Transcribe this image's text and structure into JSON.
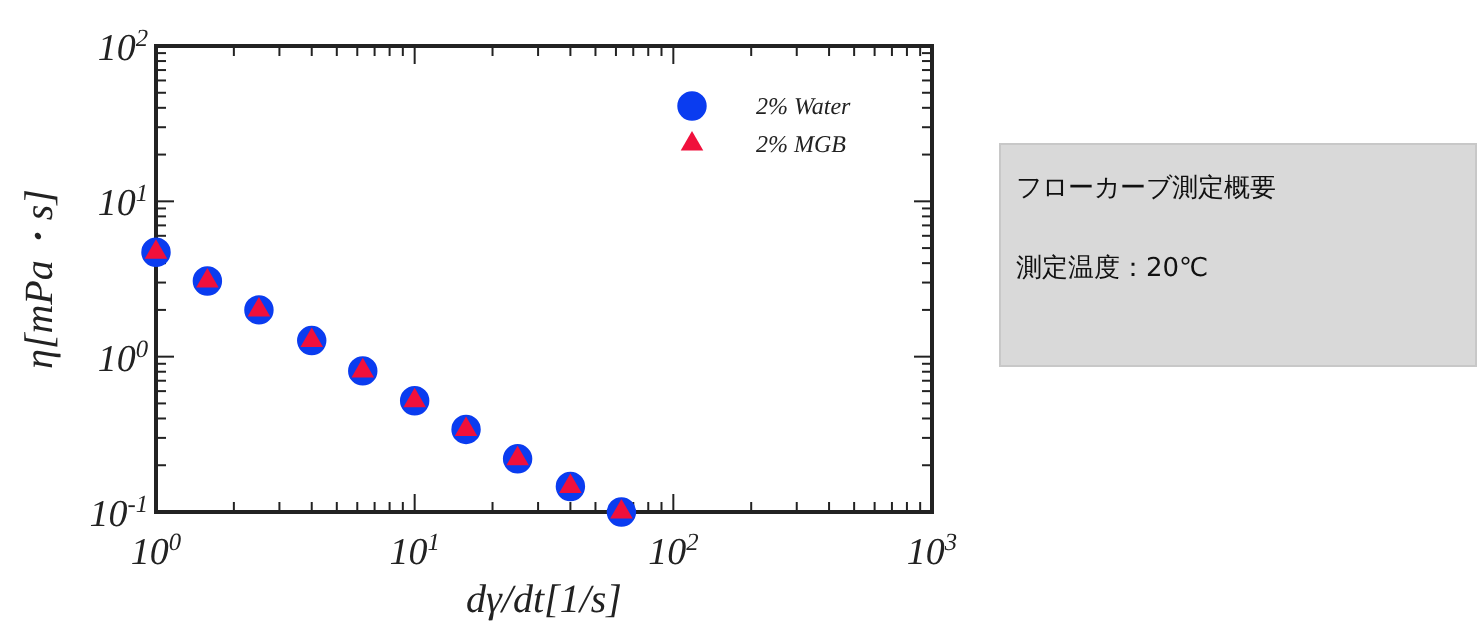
{
  "chart_data": [
    {
      "type": "scatter",
      "xlabel": "dγ/dt[1/s]",
      "ylabel": "η[mPa・s]",
      "log": "xy",
      "xlim": [
        1,
        1000
      ],
      "ylim": [
        0.1,
        100
      ],
      "xticks": [
        {
          "value": 1,
          "label": "10$^{0}$"
        },
        {
          "value": 2,
          "label": null
        },
        {
          "value": 3,
          "label": null
        },
        {
          "value": 4,
          "label": null
        },
        {
          "value": 5,
          "label": null
        },
        {
          "value": 6,
          "label": null
        },
        {
          "value": 7,
          "label": null
        },
        {
          "value": 8,
          "label": null
        },
        {
          "value": 9,
          "label": null
        },
        {
          "value": 10,
          "label": "10$^{1}$"
        },
        {
          "value": 20,
          "label": null
        },
        {
          "value": 30,
          "label": null
        },
        {
          "value": 40,
          "label": null
        },
        {
          "value": 50,
          "label": null
        },
        {
          "value": 60,
          "label": null
        },
        {
          "value": 70,
          "label": null
        },
        {
          "value": 80,
          "label": null
        },
        {
          "value": 90,
          "label": null
        },
        {
          "value": 100,
          "label": "10$^{2}$"
        },
        {
          "value": 200,
          "label": null
        },
        {
          "value": 300,
          "label": null
        },
        {
          "value": 400,
          "label": null
        },
        {
          "value": 500,
          "label": null
        },
        {
          "value": 600,
          "label": null
        },
        {
          "value": 700,
          "label": null
        },
        {
          "value": 800,
          "label": null
        },
        {
          "value": 900,
          "label": null
        },
        {
          "value": 1000,
          "label": "10$^{3}$"
        }
      ],
      "yticks": [
        {
          "value": 0.1,
          "label": "10$^{-1}$"
        },
        {
          "value": 0.2,
          "label": null
        },
        {
          "value": 0.3,
          "label": null
        },
        {
          "value": 0.4,
          "label": null
        },
        {
          "value": 0.5,
          "label": null
        },
        {
          "value": 0.6,
          "label": null
        },
        {
          "value": 0.7,
          "label": null
        },
        {
          "value": 0.8,
          "label": null
        },
        {
          "value": 0.9,
          "label": null
        },
        {
          "value": 1,
          "label": "10$^{0}$"
        },
        {
          "value": 2,
          "label": null
        },
        {
          "value": 3,
          "label": null
        },
        {
          "value": 4,
          "label": null
        },
        {
          "value": 5,
          "label": null
        },
        {
          "value": 6,
          "label": null
        },
        {
          "value": 7,
          "label": null
        },
        {
          "value": 8,
          "label": null
        },
        {
          "value": 9,
          "label": null
        },
        {
          "value": 10,
          "label": "10$^{1}$"
        },
        {
          "value": 20,
          "label": null
        },
        {
          "value": 30,
          "label": null
        },
        {
          "value": 40,
          "label": null
        },
        {
          "value": 50,
          "label": null
        },
        {
          "value": 60,
          "label": null
        },
        {
          "value": 70,
          "label": null
        },
        {
          "value": 80,
          "label": null
        },
        {
          "value": 90,
          "label": null
        },
        {
          "value": 100,
          "label": "10$^{2}$"
        }
      ],
      "x": [
        1,
        1.58,
        2.5,
        4,
        6.3,
        10,
        15.8,
        25,
        40,
        63
      ],
      "legend": "top right",
      "series": [
        {
          "name": "2% Water",
          "color": "#0a3cf0",
          "marker": "circle",
          "values": [
            4.7,
            3.07,
            2.0,
            1.27,
            0.81,
            0.52,
            0.34,
            0.22,
            0.146,
            0.1
          ]
        },
        {
          "name": "2% MGB",
          "color": "#f0103c",
          "marker": "triangle",
          "values": [
            4.7,
            3.07,
            2.0,
            1.27,
            0.81,
            0.52,
            0.34,
            0.22,
            0.146,
            0.1
          ]
        }
      ]
    },
    {
      "type": "other",
      "title": "フローカーブ測定概要",
      "annotations": [
        "測定温度：20℃"
      ]
    }
  ]
}
